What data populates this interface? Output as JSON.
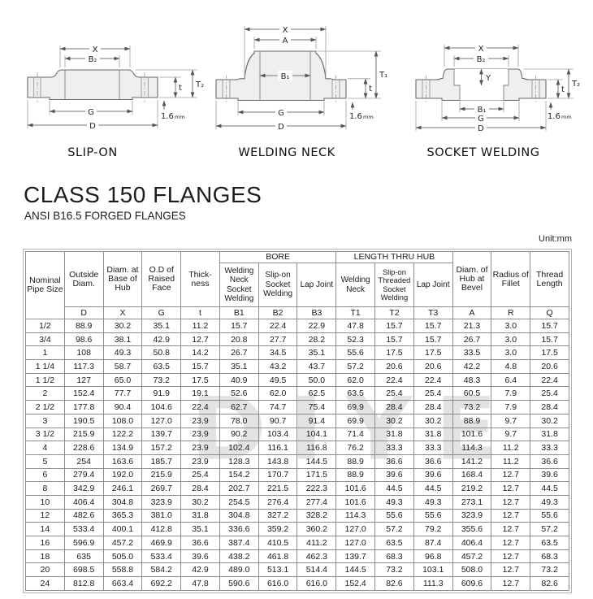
{
  "title": "CLASS 150 FLANGES",
  "subtitle": "ANSI B16.5 FORGED FLANGES",
  "unit_label": "Unit:mm",
  "watermark": "DIYE",
  "diagrams": {
    "slipon": {
      "name": "SLIP-ON",
      "dims": {
        "x": "X",
        "b2": "B₂",
        "g": "G",
        "d": "D",
        "t": "t",
        "t2": "T₂",
        "rough": "1.6",
        "rough_unit": "mm"
      }
    },
    "weldingneck": {
      "name": "WELDING NECK",
      "dims": {
        "x": "X",
        "a": "A",
        "b1": "B₁",
        "g": "G",
        "d": "D",
        "t": "t",
        "t1": "T₁",
        "rough": "1.6",
        "rough_unit": "mm"
      }
    },
    "socketwelding": {
      "name": "SOCKET WELDING",
      "dims": {
        "x": "X",
        "b2": "B₂",
        "y": "Y",
        "b1": "B₁",
        "g": "G",
        "d": "D",
        "t": "t",
        "t2": "T₂",
        "rough": "1.6",
        "rough_unit": "mm"
      }
    }
  },
  "table": {
    "groups": {
      "bore": "BORE",
      "length_thru_hub": "LENGTH THRU HUB"
    },
    "headers": {
      "nps": "Nominal Pipe Size",
      "outside_diam": "Outside Diam.",
      "diam_base_hub": "Diam. at Base of Hub",
      "od_raised_face": "O.D of Raised Face",
      "thickness": "Thick-ness",
      "bore_welding_neck": "Welding Neck Socket Welding",
      "bore_slip_on": "Slip-on Socket Welding",
      "bore_lap_joint": "Lap Joint",
      "hub_welding_neck": "Welding Neck",
      "hub_slip_on": "Slip-on Threaded Socket Welding",
      "hub_lap_joint": "Lap Joint",
      "diam_hub_bevel": "Diam. of Hub at Bevel",
      "radius_fillet": "Radius of Fillet",
      "thread_length": "Thread Length"
    },
    "symbols": [
      "D",
      "X",
      "G",
      "t",
      "B1",
      "B2",
      "B3",
      "T1",
      "T2",
      "T3",
      "A",
      "R",
      "Q"
    ],
    "rows": [
      [
        "1/2",
        "88.9",
        "30.2",
        "35.1",
        "11.2",
        "15.7",
        "22.4",
        "22.9",
        "47.8",
        "15.7",
        "15.7",
        "21.3",
        "3.0",
        "15.7"
      ],
      [
        "3/4",
        "98.6",
        "38.1",
        "42.9",
        "12.7",
        "20.8",
        "27.7",
        "28.2",
        "52.3",
        "15.7",
        "15.7",
        "26.7",
        "3.0",
        "15.7"
      ],
      [
        "1",
        "108",
        "49.3",
        "50.8",
        "14.2",
        "26.7",
        "34.5",
        "35.1",
        "55.6",
        "17.5",
        "17.5",
        "33.5",
        "3.0",
        "17.5"
      ],
      [
        "1 1/4",
        "117.3",
        "58.7",
        "63.5",
        "15.7",
        "35.1",
        "43.2",
        "43.7",
        "57.2",
        "20.6",
        "20.6",
        "42.2",
        "4.8",
        "20.6"
      ],
      [
        "1 1/2",
        "127",
        "65.0",
        "73.2",
        "17.5",
        "40.9",
        "49.5",
        "50.0",
        "62.0",
        "22.4",
        "22.4",
        "48.3",
        "6.4",
        "22.4"
      ],
      [
        "2",
        "152.4",
        "77.7",
        "91.9",
        "19.1",
        "52.6",
        "62.0",
        "62.5",
        "63.5",
        "25.4",
        "25.4",
        "60.5",
        "7.9",
        "25.4"
      ],
      [
        "2 1/2",
        "177.8",
        "90.4",
        "104.6",
        "22.4",
        "62.7",
        "74.7",
        "75.4",
        "69.9",
        "28.4",
        "28.4",
        "73.2",
        "7.9",
        "28.4"
      ],
      [
        "3",
        "190.5",
        "108.0",
        "127.0",
        "23.9",
        "78.0",
        "90.7",
        "91.4",
        "69.9",
        "30.2",
        "30.2",
        "88.9",
        "9.7",
        "30.2"
      ],
      [
        "3 1/2",
        "215.9",
        "122.2",
        "139.7",
        "23.9",
        "90.2",
        "103.4",
        "104.1",
        "71.4",
        "31.8",
        "31.8",
        "101.6",
        "9.7",
        "31.8"
      ],
      [
        "4",
        "228.6",
        "134.9",
        "157.2",
        "23.9",
        "102.4",
        "116.1",
        "116.8",
        "76.2",
        "33.3",
        "33.3",
        "114.3",
        "11.2",
        "33.3"
      ],
      [
        "5",
        "254",
        "163.6",
        "185.7",
        "23.9",
        "128.3",
        "143.8",
        "144.5",
        "88.9",
        "36.6",
        "36.6",
        "141.2",
        "11.2",
        "36.6"
      ],
      [
        "6",
        "279.4",
        "192.0",
        "215.9",
        "25.4",
        "154.2",
        "170.7",
        "171.5",
        "88.9",
        "39.6",
        "39.6",
        "168.4",
        "12.7",
        "39.6"
      ],
      [
        "8",
        "342.9",
        "246.1",
        "269.7",
        "28.4",
        "202.7",
        "221.5",
        "222.3",
        "101.6",
        "44.5",
        "44.5",
        "219.2",
        "12.7",
        "44.5"
      ],
      [
        "10",
        "406.4",
        "304.8",
        "323.9",
        "30.2",
        "254.5",
        "276.4",
        "277.4",
        "101.6",
        "49.3",
        "49.3",
        "273.1",
        "12.7",
        "49.3"
      ],
      [
        "12",
        "482.6",
        "365.3",
        "381.0",
        "31.8",
        "304.8",
        "327.2",
        "328.2",
        "114.3",
        "55.6",
        "55.6",
        "323.9",
        "12.7",
        "55.6"
      ],
      [
        "14",
        "533.4",
        "400.1",
        "412.8",
        "35.1",
        "336.6",
        "359.2",
        "360.2",
        "127.0",
        "57.2",
        "79.2",
        "355.6",
        "12.7",
        "57.2"
      ],
      [
        "16",
        "596.9",
        "457.2",
        "469.9",
        "36.6",
        "387.4",
        "410.5",
        "411.2",
        "127.0",
        "63.5",
        "87.4",
        "406.4",
        "12.7",
        "63.5"
      ],
      [
        "18",
        "635",
        "505.0",
        "533.4",
        "39.6",
        "438.2",
        "461.8",
        "462.3",
        "139.7",
        "68.3",
        "96.8",
        "457.2",
        "12.7",
        "68.3"
      ],
      [
        "20",
        "698.5",
        "558.8",
        "584.2",
        "42.9",
        "489.0",
        "513.1",
        "514.4",
        "144.5",
        "73.2",
        "103.1",
        "508.0",
        "12.7",
        "73.2"
      ],
      [
        "24",
        "812.8",
        "663.4",
        "692.2",
        "47.8",
        "590.6",
        "616.0",
        "616.0",
        "152.4",
        "82.6",
        "111.3",
        "609.6",
        "12.7",
        "82.6"
      ]
    ]
  }
}
